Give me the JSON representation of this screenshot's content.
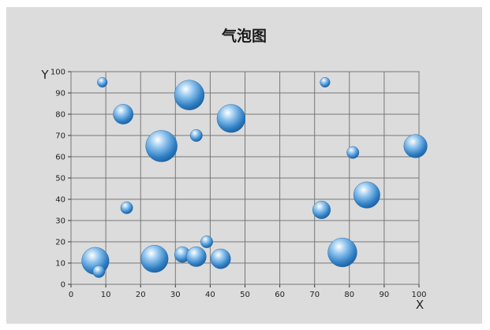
{
  "chart_data": {
    "type": "scatter",
    "subtype": "bubble",
    "title": "气泡图",
    "xlabel": "X",
    "ylabel": "Y",
    "xlim": [
      0,
      100
    ],
    "ylim": [
      0,
      100
    ],
    "xticks": [
      0,
      10,
      20,
      30,
      40,
      50,
      60,
      70,
      80,
      90,
      100
    ],
    "yticks": [
      0,
      10,
      20,
      30,
      40,
      50,
      60,
      70,
      80,
      90,
      100
    ],
    "grid": true,
    "legend": "none",
    "bubble_color": "#2f7fc4",
    "points": [
      {
        "x": 9,
        "y": 95,
        "size": 1
      },
      {
        "x": 15,
        "y": 80,
        "size": 4
      },
      {
        "x": 34,
        "y": 89,
        "size": 9
      },
      {
        "x": 46,
        "y": 78,
        "size": 8
      },
      {
        "x": 36,
        "y": 70,
        "size": 1.5
      },
      {
        "x": 26,
        "y": 65,
        "size": 10
      },
      {
        "x": 16,
        "y": 36,
        "size": 1.5
      },
      {
        "x": 7,
        "y": 11,
        "size": 7.5
      },
      {
        "x": 8,
        "y": 6,
        "size": 1.5
      },
      {
        "x": 24,
        "y": 12,
        "size": 7.5
      },
      {
        "x": 32,
        "y": 14,
        "size": 2.5
      },
      {
        "x": 36,
        "y": 13,
        "size": 4
      },
      {
        "x": 39,
        "y": 20,
        "size": 1.5
      },
      {
        "x": 43,
        "y": 12,
        "size": 4
      },
      {
        "x": 73,
        "y": 95,
        "size": 1
      },
      {
        "x": 81,
        "y": 62,
        "size": 1.5
      },
      {
        "x": 99,
        "y": 65,
        "size": 5.5
      },
      {
        "x": 85,
        "y": 42,
        "size": 7
      },
      {
        "x": 72,
        "y": 35,
        "size": 3.2
      },
      {
        "x": 78,
        "y": 15,
        "size": 8.5
      }
    ]
  }
}
